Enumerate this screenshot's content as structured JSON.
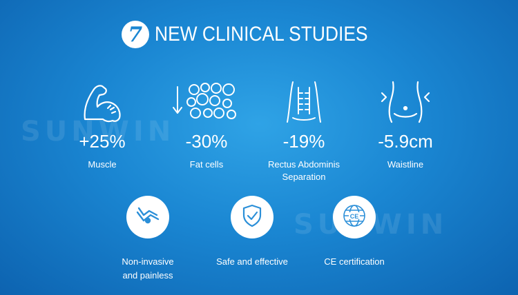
{
  "header": {
    "badge": "7",
    "title": "NEW CLINICAL STUDIES"
  },
  "watermark": "SUNWIN",
  "stats": [
    {
      "icon": "muscle-arm-icon",
      "value": "+25%",
      "label": "Muscle"
    },
    {
      "icon": "fat-cells-icon",
      "value": "-30%",
      "label": "Fat cells"
    },
    {
      "icon": "abdomen-icon",
      "value": "-19%",
      "label_line1": "Rectus Abdominis",
      "label_line2": "Separation"
    },
    {
      "icon": "waist-icon",
      "value": "-5.9cm",
      "label": "Waistline"
    }
  ],
  "features": [
    {
      "icon": "body-contour-icon",
      "label_line1": "Non-invasive",
      "label_line2": "and painless"
    },
    {
      "icon": "shield-check-icon",
      "label": "Safe and effective"
    },
    {
      "icon": "ce-globe-icon",
      "label": "CE certification",
      "badge_text": "CE"
    }
  ],
  "colors": {
    "background": "#1a86d2",
    "accent": "#2b8fd8",
    "text": "#ffffff"
  }
}
